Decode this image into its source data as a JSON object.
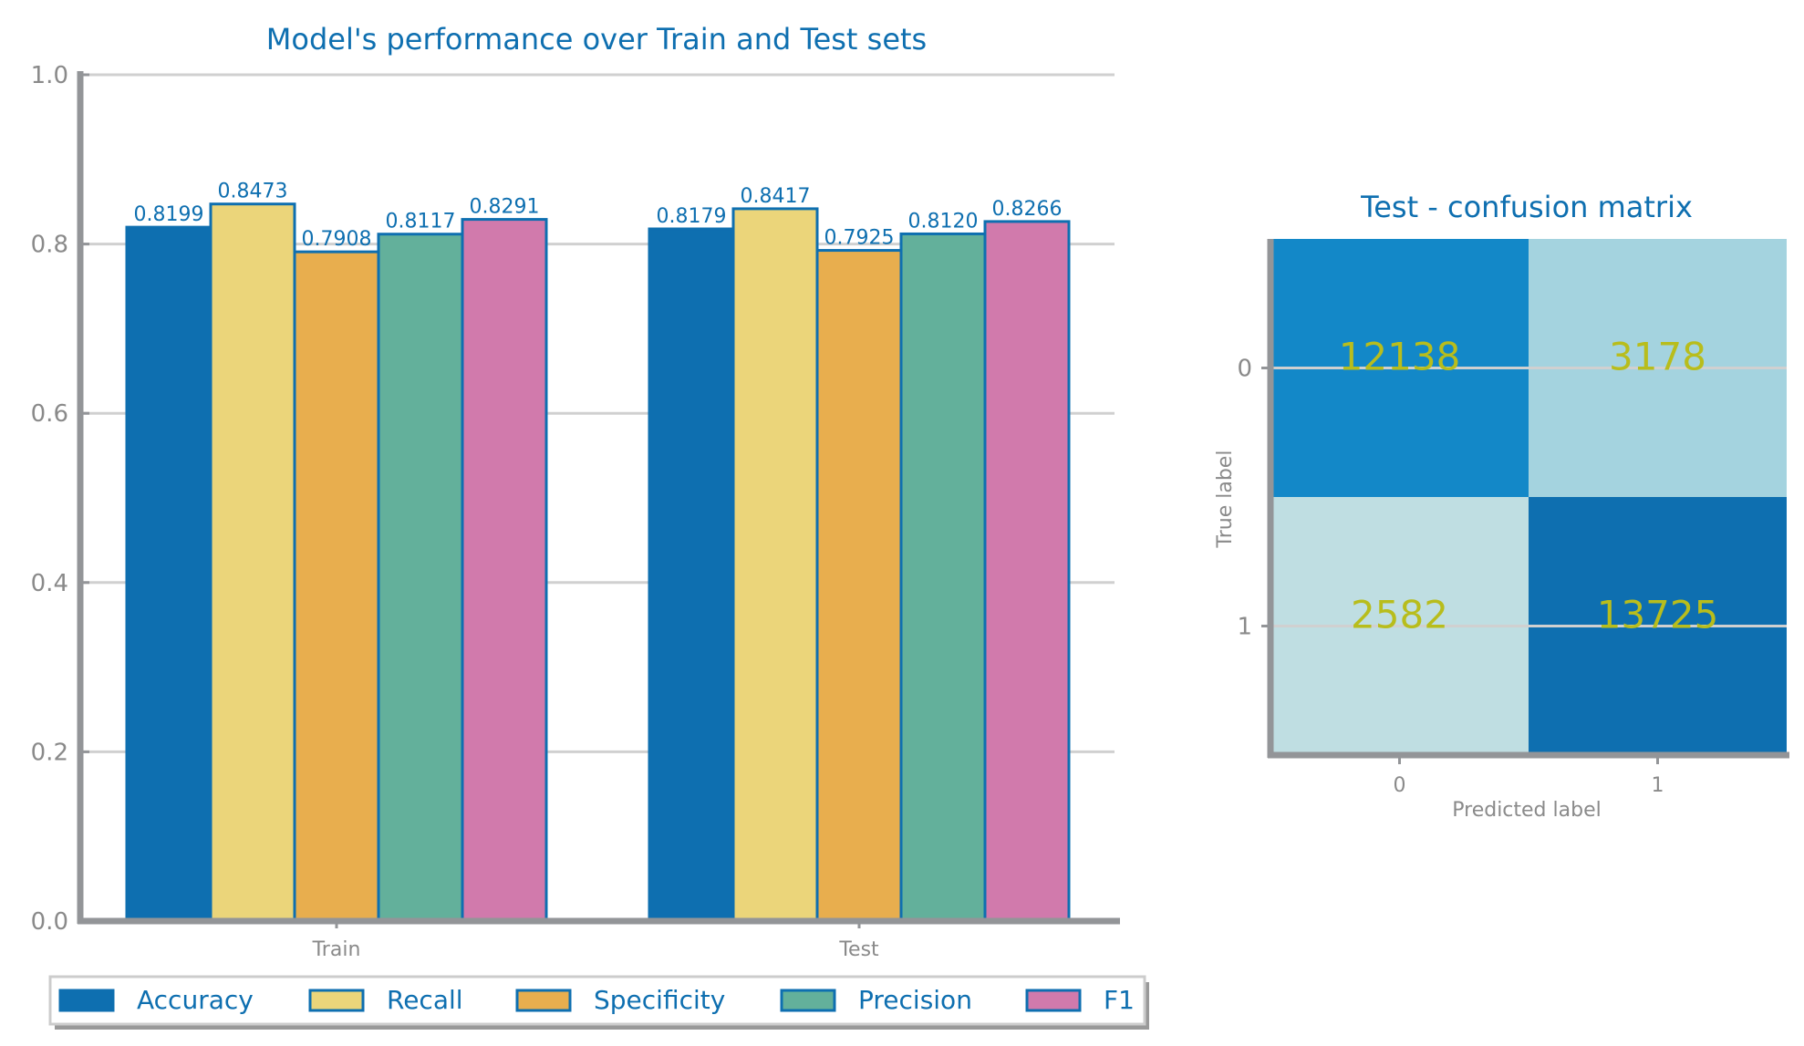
{
  "colors": {
    "title": "#0e6fb0",
    "axis": "#939598",
    "tick_label": "#8a8a8a",
    "grid": "#d0d0d0",
    "bar_edge": "#0e6fb0",
    "data_label": "#0e6fb0",
    "legend_text": "#0e6fb0",
    "cm_text": "#b8bd1c"
  },
  "chart_data": [
    {
      "type": "bar",
      "title": "Model's performance over Train and Test sets",
      "xlabel": "",
      "ylabel": "",
      "categories": [
        "Train",
        "Test"
      ],
      "ylim": [
        0,
        1.0
      ],
      "yticks": [
        "0.0",
        "0.2",
        "0.4",
        "0.6",
        "0.8",
        "1.0"
      ],
      "grid": true,
      "legend_position": "bottom",
      "series": [
        {
          "name": "Accuracy",
          "color": "#0e6fb0",
          "values": [
            0.8199,
            0.8179
          ],
          "labels": [
            "0.8199",
            "0.8179"
          ]
        },
        {
          "name": "Recall",
          "color": "#ebd57a",
          "values": [
            0.8473,
            0.8417
          ],
          "labels": [
            "0.8473",
            "0.8417"
          ]
        },
        {
          "name": "Specificity",
          "color": "#e8ae4e",
          "values": [
            0.7908,
            0.7925
          ],
          "labels": [
            "0.7908",
            "0.7925"
          ]
        },
        {
          "name": "Precision",
          "color": "#63b09b",
          "values": [
            0.8117,
            0.812
          ],
          "labels": [
            "0.8117",
            "0.8120"
          ]
        },
        {
          "name": "F1",
          "color": "#d17aac",
          "values": [
            0.8291,
            0.8266
          ],
          "labels": [
            "0.8291",
            "0.8266"
          ]
        }
      ]
    },
    {
      "type": "heatmap",
      "title": "Test - confusion matrix",
      "xlabel": "Predicted label",
      "ylabel": "True label",
      "x_labels": [
        "0",
        "1"
      ],
      "y_labels": [
        "0",
        "1"
      ],
      "values": [
        [
          12138,
          3178
        ],
        [
          2582,
          13725
        ]
      ],
      "cell_labels": [
        [
          "12138",
          "3178"
        ],
        [
          "2582",
          "13725"
        ]
      ],
      "cell_colors": [
        [
          "#1388c8",
          "#a4d3df"
        ],
        [
          "#bfdee2",
          "#0e6fb0"
        ]
      ]
    }
  ]
}
